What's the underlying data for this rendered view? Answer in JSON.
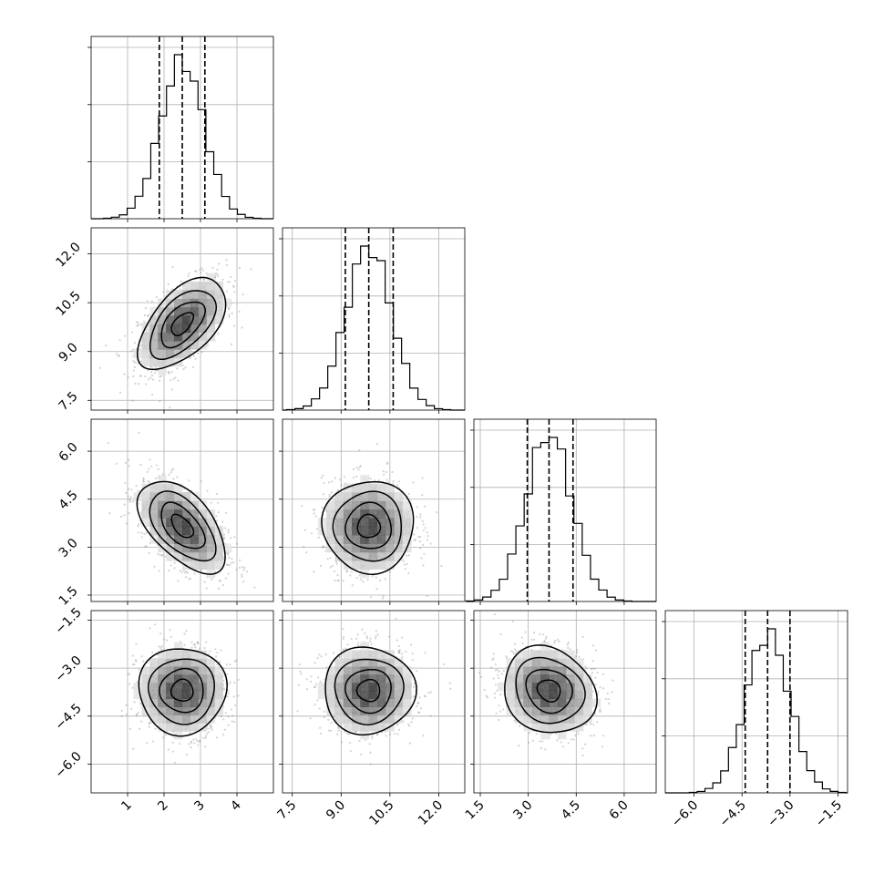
{
  "chart_data": {
    "type": "corner",
    "grid": true,
    "parameters": [
      {
        "index": 0,
        "range": [
          0,
          5
        ],
        "ticks": [
          1,
          2,
          3,
          4
        ],
        "tick_labels": [
          "1",
          "2",
          "3",
          "4"
        ],
        "mean": 2.5,
        "sigma": 0.6,
        "quantiles": [
          1.87,
          2.5,
          3.12
        ]
      },
      {
        "index": 1,
        "range": [
          7.2,
          12.8
        ],
        "ticks": [
          7.5,
          9.0,
          10.5,
          12.0
        ],
        "tick_labels": [
          "7.5",
          "9.0",
          "10.5",
          "12.0"
        ],
        "mean": 9.85,
        "sigma": 0.7,
        "quantiles": [
          9.13,
          9.85,
          10.6
        ]
      },
      {
        "index": 2,
        "range": [
          1.3,
          7.0
        ],
        "ticks": [
          1.5,
          3.0,
          4.5,
          6.0
        ],
        "tick_labels": [
          "1.5",
          "3.0",
          "4.5",
          "6.0"
        ],
        "mean": 3.65,
        "sigma": 0.72,
        "quantiles": [
          2.97,
          3.65,
          4.4
        ]
      },
      {
        "index": 3,
        "range": [
          -6.9,
          -1.2
        ],
        "ticks": [
          -6.0,
          -4.5,
          -3.0,
          -1.5
        ],
        "tick_labels": [
          "−6.0",
          "−4.5",
          "−3.0",
          "−1.5"
        ],
        "mean": -3.7,
        "sigma": 0.68,
        "quantiles": [
          -4.4,
          -3.7,
          -3.0
        ]
      }
    ],
    "correlations": {
      "1_0": 0.55,
      "2_0": -0.55,
      "2_1": 0.0,
      "3_0": 0.0,
      "3_1": 0.0,
      "3_2": -0.15
    },
    "contour_levels_sigma": [
      0.5,
      1.0,
      1.5,
      2.0
    ],
    "colors": {
      "points": "#808080",
      "lines": "#000000",
      "grid": "#b0b0b0"
    }
  }
}
